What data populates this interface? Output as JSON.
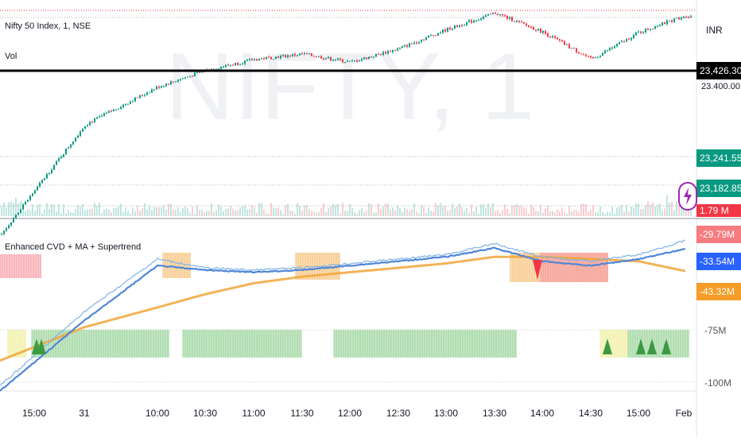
{
  "header": {
    "symbol": "Nifty 50 Index, 1, NSE",
    "volume_label": "Vol",
    "watermark": "NIFTY, 1"
  },
  "price_axis": {
    "currency": "INR",
    "tags": [
      {
        "value": "23,426.30",
        "color": "#000000"
      },
      {
        "value": "23,241.55",
        "color": "#089981"
      },
      {
        "value": "23,182.85",
        "color": "#089981"
      },
      {
        "value": "1.79 M",
        "color": "#f23645"
      }
    ],
    "partial_label": "23,400.00"
  },
  "indicator": {
    "title": "Enhanced CVD + MA + Supertrend",
    "tags": [
      {
        "value": "-29.79M",
        "color": "#f77c80"
      },
      {
        "value": "-33.54M",
        "color": "#2962ff"
      },
      {
        "value": "-43.32M",
        "color": "#f59d27"
      }
    ],
    "axis_ticks": [
      "-75M",
      "-100M"
    ]
  },
  "time_axis": [
    "15:00",
    "31",
    "10:00",
    "10:30",
    "11:00",
    "11:30",
    "12:00",
    "12:30",
    "13:00",
    "13:30",
    "14:00",
    "14:30",
    "15:00",
    "Feb"
  ],
  "colors": {
    "up": "#089981",
    "down": "#f23645",
    "cvd": "#4f86d8",
    "ma": "#f0a63a",
    "zone_red": "#f7a1a8",
    "zone_orange": "#f7c27d",
    "zone_green": "#9bd49c",
    "zone_yellow": "#f1ef9e"
  },
  "chart_data": [
    {
      "type": "line",
      "name": "price",
      "x": [
        "15:00",
        "31",
        "10:00",
        "10:30",
        "11:00",
        "11:30",
        "12:00",
        "12:30",
        "13:00",
        "13:30",
        "14:00",
        "14:30",
        "15:00",
        "Feb"
      ],
      "y": [
        23180,
        23300,
        23370,
        23400,
        23420,
        23430,
        23415,
        23440,
        23475,
        23505,
        23470,
        23420,
        23470,
        23500
      ],
      "reference_line": 23426.3,
      "last_close": 23500
    },
    {
      "type": "line",
      "name": "Enhanced CVD + MA + Supertrend",
      "x": [
        "15:00",
        "31",
        "10:00",
        "10:30",
        "11:00",
        "11:30",
        "12:00",
        "12:30",
        "13:00",
        "13:30",
        "14:00",
        "14:30",
        "15:00",
        "Feb"
      ],
      "series": [
        {
          "values": [
            -82,
            -62,
            -38,
            -42,
            -43,
            -42,
            -40,
            -38,
            -36,
            -31,
            -37,
            -39,
            -36,
            -29.79
          ]
        },
        {
          "values": [
            -85,
            -66,
            -41,
            -43,
            -44,
            -43,
            -41,
            -39,
            -37,
            -33,
            -39,
            -41,
            -38,
            -33.54
          ]
        },
        {
          "values": [
            -78,
            -69,
            -60,
            -54,
            -49,
            -46,
            -44,
            -42,
            -40,
            -37,
            -37,
            -38,
            -39,
            -43.32
          ]
        }
      ],
      "y_ticks": [
        -75,
        -100
      ]
    }
  ]
}
